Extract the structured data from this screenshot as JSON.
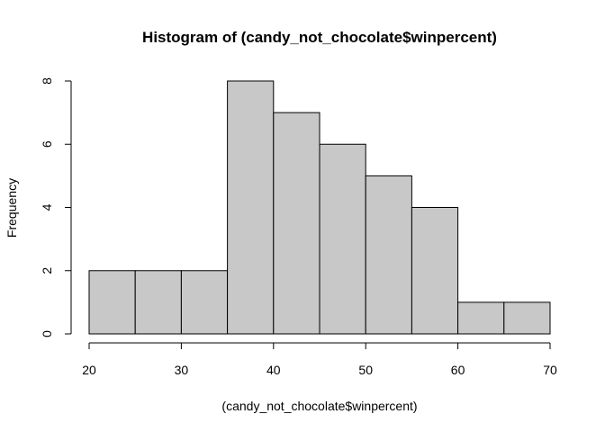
{
  "chart_data": {
    "type": "bar",
    "title": "Histogram of (candy_not_chocolate$winpercent)",
    "xlabel": "(candy_not_chocolate$winpercent)",
    "ylabel": "Frequency",
    "bins": [
      {
        "start": 20,
        "end": 25,
        "count": 2
      },
      {
        "start": 25,
        "end": 30,
        "count": 2
      },
      {
        "start": 30,
        "end": 35,
        "count": 2
      },
      {
        "start": 35,
        "end": 40,
        "count": 8
      },
      {
        "start": 40,
        "end": 45,
        "count": 7
      },
      {
        "start": 45,
        "end": 50,
        "count": 6
      },
      {
        "start": 50,
        "end": 55,
        "count": 5
      },
      {
        "start": 55,
        "end": 60,
        "count": 4
      },
      {
        "start": 60,
        "end": 65,
        "count": 1
      },
      {
        "start": 65,
        "end": 70,
        "count": 1
      }
    ],
    "xlim": [
      20,
      70
    ],
    "ylim": [
      0,
      8
    ],
    "xticks": [
      20,
      30,
      40,
      50,
      60,
      70
    ],
    "yticks": [
      0,
      2,
      4,
      6,
      8
    ],
    "grid": false,
    "bar_color": "#c8c8c8",
    "edge_color": "#000000"
  }
}
